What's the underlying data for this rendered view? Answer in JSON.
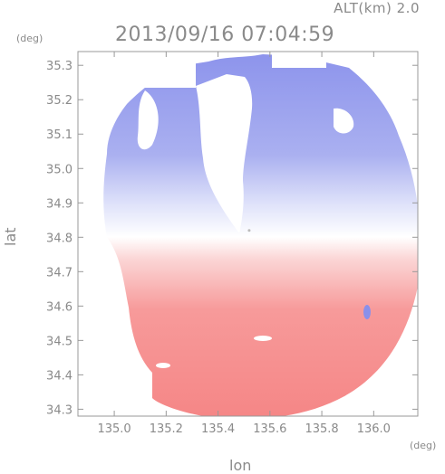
{
  "header": {
    "alt_label": "ALT(km) 2.0",
    "timestamp": "2013/09/16 07:04:59"
  },
  "chart_data": {
    "type": "heatmap",
    "title": "2013/09/16 07:04:59",
    "xlabel": "lon",
    "ylabel": "lat",
    "x_unit": "(deg)",
    "y_unit": "(deg)",
    "xlim": [
      134.86,
      136.17
    ],
    "ylim": [
      34.28,
      35.34
    ],
    "x_ticks": [
      "135.0",
      "135.2",
      "135.4",
      "135.6",
      "135.8",
      "136.0"
    ],
    "y_ticks": [
      "34.3",
      "34.4",
      "34.5",
      "34.6",
      "34.7",
      "34.8",
      "34.9",
      "35.0",
      "35.1",
      "35.2",
      "35.3"
    ],
    "radar_center": {
      "lon": 135.52,
      "lat": 34.82
    },
    "colors": {
      "north": "#7a80e6",
      "south": "#f47a7a",
      "neutral": "#ffffff",
      "axis": "#999999"
    },
    "grid": false
  }
}
